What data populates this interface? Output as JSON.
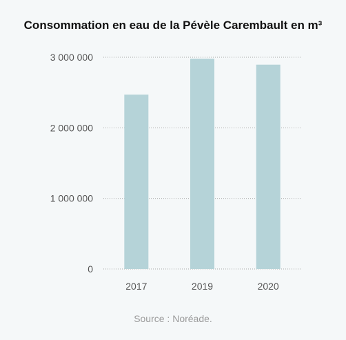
{
  "chart_data": {
    "type": "bar",
    "title": "Consommation en eau de la Pévèle Carembault en m³",
    "categories": [
      "2017",
      "2019",
      "2020"
    ],
    "values": [
      2470000,
      2980000,
      2895000
    ],
    "ylim": [
      0,
      3000000
    ],
    "yticks": [
      0,
      1000000,
      2000000,
      3000000
    ],
    "ytick_labels": [
      "0",
      "1 000 000",
      "2 000 000",
      "3 000 000"
    ],
    "xlabel": "",
    "ylabel": "",
    "grid": true,
    "bar_color": "#b5d3d8",
    "source": "Source : Noréade."
  }
}
